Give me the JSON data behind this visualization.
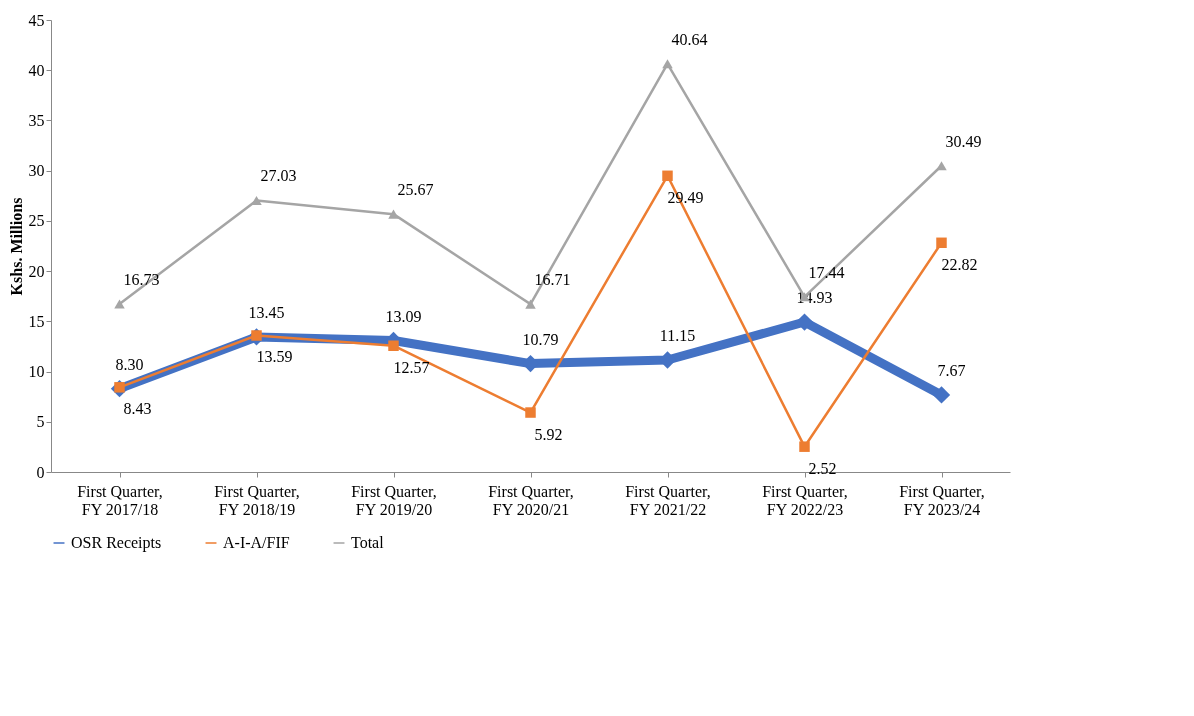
{
  "chart_data": {
    "type": "line",
    "ylabel": "Kshs. Millions",
    "categories": [
      "First Quarter, FY 2017/18",
      "First Quarter, FY 2018/19",
      "First Quarter, FY 2019/20",
      "First Quarter, FY 2020/21",
      "First Quarter, FY 2021/22",
      "First Quarter, FY 2022/23",
      "First Quarter, FY 2023/24"
    ],
    "series": [
      {
        "name": "OSR Receipts",
        "color": "#4472c4",
        "marker": "diamond",
        "values": [
          8.3,
          13.45,
          13.09,
          10.79,
          11.15,
          14.93,
          7.67
        ],
        "value_labels": [
          "8.30",
          "13.45",
          "13.09",
          "10.79",
          "11.15",
          "14.93",
          "7.67"
        ]
      },
      {
        "name": "A-I-A/FIF",
        "color": "#ed7d31",
        "marker": "square",
        "values": [
          8.43,
          13.59,
          12.57,
          5.92,
          29.49,
          2.52,
          22.82
        ],
        "value_labels": [
          "8.43",
          "13.59",
          "12.57",
          "5.92",
          "29.49",
          "2.52",
          "22.82"
        ]
      },
      {
        "name": "Total",
        "color": "#a5a5a5",
        "marker": "triangle",
        "values": [
          16.73,
          27.03,
          25.67,
          16.71,
          40.64,
          17.44,
          30.49
        ],
        "value_labels": [
          "16.73",
          "27.03",
          "25.67",
          "16.71",
          "40.64",
          "17.44",
          "30.49"
        ]
      }
    ],
    "ylim": [
      0,
      45
    ],
    "yticks": [
      0,
      5,
      10,
      15,
      20,
      25,
      30,
      35,
      40,
      45
    ],
    "grid": false,
    "legend": "bottom",
    "line_style": "solid"
  }
}
